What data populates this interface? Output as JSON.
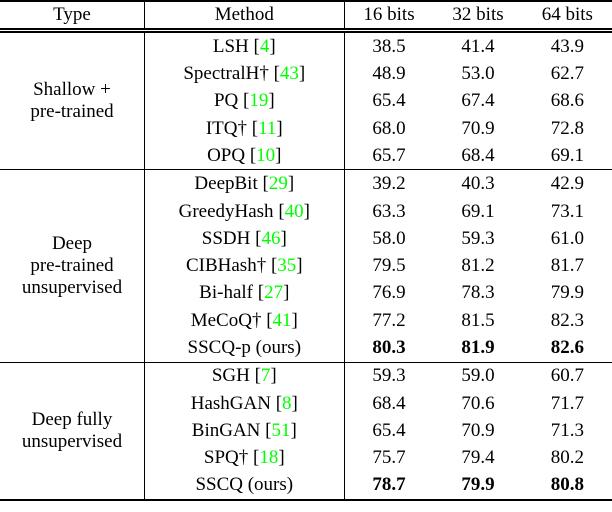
{
  "table": {
    "columns": [
      "Type",
      "Method",
      "16 bits",
      "32 bits",
      "64 bits"
    ],
    "groups": [
      {
        "type_lines": [
          "Shallow +",
          "pre-trained"
        ],
        "rows": [
          {
            "method": "LSH",
            "cite": "4",
            "values": [
              "38.5",
              "41.4",
              "43.9"
            ],
            "bold": false
          },
          {
            "method": "SpectralH†",
            "cite": "43",
            "values": [
              "48.9",
              "53.0",
              "62.7"
            ],
            "bold": false
          },
          {
            "method": "PQ",
            "cite": "19",
            "values": [
              "65.4",
              "67.4",
              "68.6"
            ],
            "bold": false
          },
          {
            "method": "ITQ†",
            "cite": "11",
            "values": [
              "68.0",
              "70.9",
              "72.8"
            ],
            "bold": false
          },
          {
            "method": "OPQ",
            "cite": "10",
            "values": [
              "65.7",
              "68.4",
              "69.1"
            ],
            "bold": false
          }
        ]
      },
      {
        "type_lines": [
          "Deep",
          "pre-trained",
          "unsupervised"
        ],
        "rows": [
          {
            "method": "DeepBit",
            "cite": "29",
            "values": [
              "39.2",
              "40.3",
              "42.9"
            ],
            "bold": false
          },
          {
            "method": "GreedyHash",
            "cite": "40",
            "values": [
              "63.3",
              "69.1",
              "73.1"
            ],
            "bold": false
          },
          {
            "method": "SSDH",
            "cite": "46",
            "values": [
              "58.0",
              "59.3",
              "61.0"
            ],
            "bold": false
          },
          {
            "method": "CIBHash†",
            "cite": "35",
            "values": [
              "79.5",
              "81.2",
              "81.7"
            ],
            "bold": false
          },
          {
            "method": "Bi-half",
            "cite": "27",
            "values": [
              "76.9",
              "78.3",
              "79.9"
            ],
            "bold": false
          },
          {
            "method": "MeCoQ†",
            "cite": "41",
            "values": [
              "77.2",
              "81.5",
              "82.3"
            ],
            "bold": false
          },
          {
            "method": "SSCQ-p (ours)",
            "cite": null,
            "values": [
              "80.3",
              "81.9",
              "82.6"
            ],
            "bold": true
          }
        ]
      },
      {
        "type_lines": [
          "Deep fully",
          "unsupervised"
        ],
        "rows": [
          {
            "method": "SGH",
            "cite": "7",
            "values": [
              "59.3",
              "59.0",
              "60.7"
            ],
            "bold": false
          },
          {
            "method": "HashGAN",
            "cite": "8",
            "values": [
              "68.4",
              "70.6",
              "71.7"
            ],
            "bold": false
          },
          {
            "method": "BinGAN",
            "cite": "51",
            "values": [
              "65.4",
              "70.9",
              "71.3"
            ],
            "bold": false
          },
          {
            "method": "SPQ†",
            "cite": "18",
            "values": [
              "75.7",
              "79.4",
              "80.2"
            ],
            "bold": false
          },
          {
            "method": "SSCQ (ours)",
            "cite": null,
            "values": [
              "78.7",
              "79.9",
              "80.8"
            ],
            "bold": true
          }
        ]
      }
    ],
    "colors": {
      "citation": "#00ff00",
      "text": "#000000",
      "border": "#000000",
      "background": "#ffffff"
    }
  }
}
